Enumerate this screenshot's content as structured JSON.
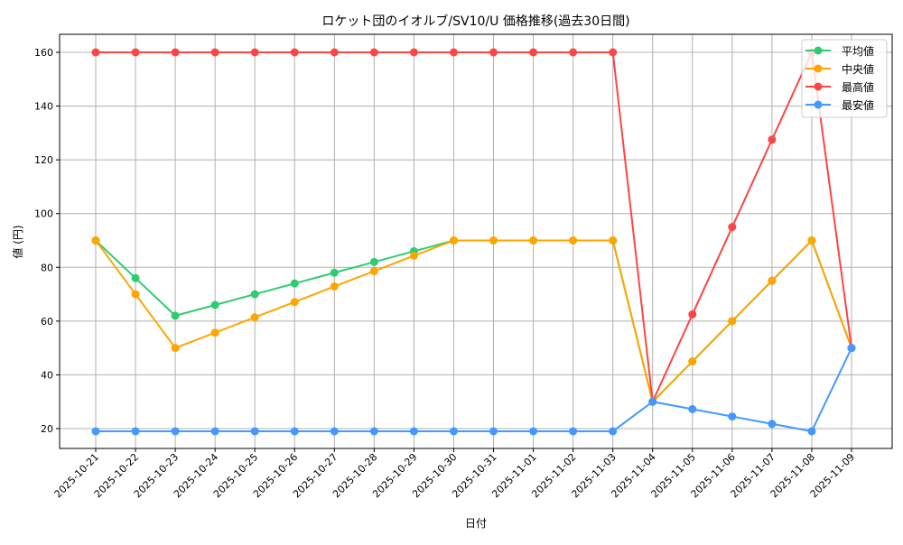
{
  "chart_data": {
    "type": "line",
    "title": "ロケット団のイオルブ/SV10/U 価格推移(過去30日間)",
    "xlabel": "日付",
    "ylabel": "値 (円)",
    "ylim": [
      12,
      166
    ],
    "yticks": [
      20,
      40,
      60,
      80,
      100,
      120,
      140,
      160
    ],
    "grid": true,
    "legend_position": "top-right",
    "categories": [
      "2025-10-21",
      "2025-10-22",
      "2025-10-23",
      "2025-10-24",
      "2025-10-25",
      "2025-10-26",
      "2025-10-27",
      "2025-10-28",
      "2025-10-29",
      "2025-10-30",
      "2025-10-31",
      "2025-11-01",
      "2025-11-02",
      "2025-11-03",
      "2025-11-04",
      "2025-11-05",
      "2025-11-06",
      "2025-11-07",
      "2025-11-08",
      "2025-11-09"
    ],
    "series": [
      {
        "name": "平均値",
        "color": "#2ecc71",
        "values": [
          90,
          76,
          62,
          66,
          70,
          74,
          78,
          82,
          86,
          90,
          90,
          90,
          90,
          90,
          30,
          45,
          60,
          75,
          90,
          50
        ]
      },
      {
        "name": "中央値",
        "color": "#ffa500",
        "values": [
          90,
          70,
          50,
          55.7,
          61.4,
          67.1,
          72.9,
          78.6,
          84.3,
          90,
          90,
          90,
          90,
          90,
          30,
          45,
          60,
          75,
          90,
          50
        ]
      },
      {
        "name": "最高値",
        "color": "#ff4444",
        "values": [
          160,
          160,
          160,
          160,
          160,
          160,
          160,
          160,
          160,
          160,
          160,
          160,
          160,
          160,
          30,
          62.5,
          95,
          127.5,
          160,
          50
        ]
      },
      {
        "name": "最安値",
        "color": "#4499ff",
        "values": [
          19,
          19,
          19,
          19,
          19,
          19,
          19,
          19,
          19,
          19,
          19,
          19,
          19,
          19,
          30,
          27.25,
          24.5,
          21.75,
          19,
          50
        ]
      }
    ]
  }
}
